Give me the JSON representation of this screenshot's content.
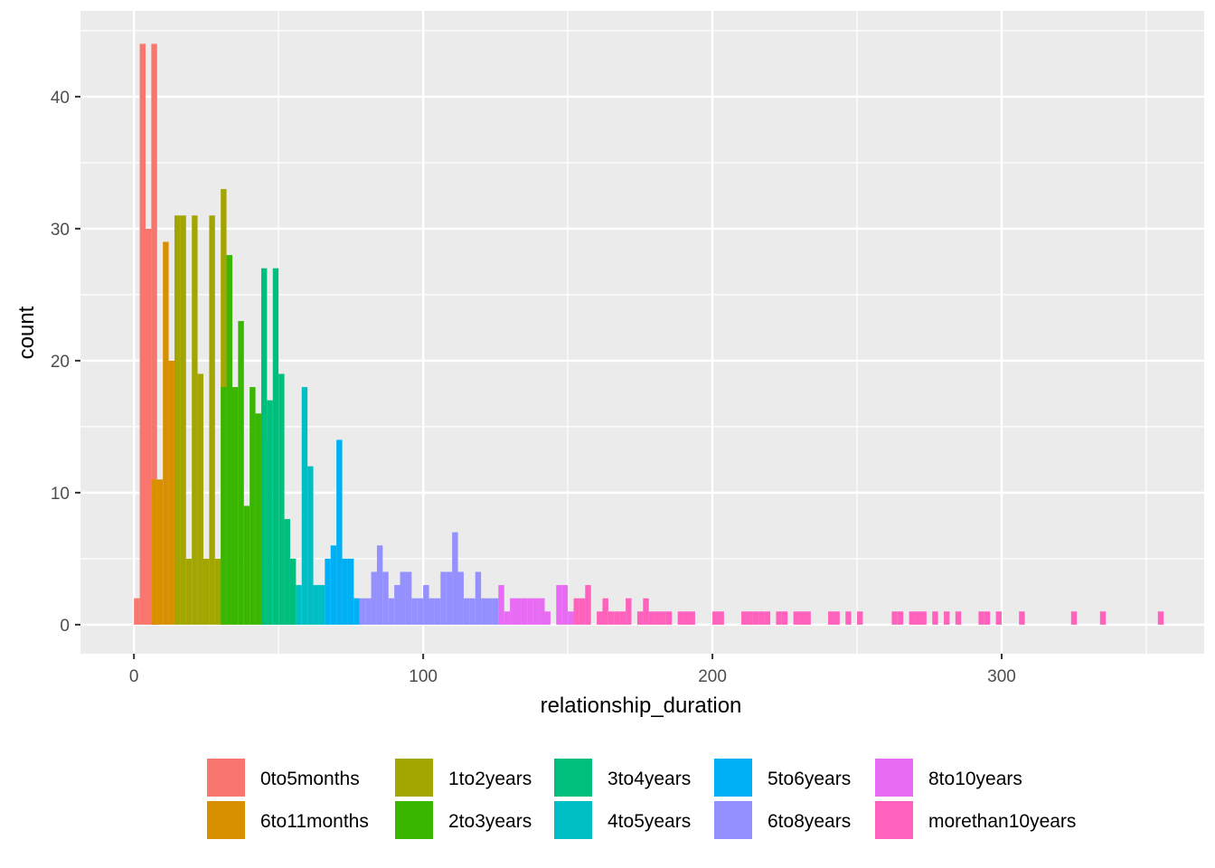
{
  "chart_data": {
    "type": "bar",
    "title": "",
    "xlabel": "relationship_duration",
    "ylabel": "count",
    "xlim": [
      -18.5,
      370
    ],
    "ylim": [
      -2.2,
      46.5
    ],
    "x_ticks": [
      0,
      100,
      200,
      300
    ],
    "y_ticks": [
      0,
      10,
      20,
      30,
      40
    ],
    "grid": true,
    "legend_position": "bottom",
    "bin_width": 2,
    "series": [
      {
        "name": "0to5months",
        "color": "#F8766D",
        "bins": [
          [
            0,
            2
          ],
          [
            2,
            44
          ],
          [
            4,
            30
          ],
          [
            6,
            44
          ]
        ]
      },
      {
        "name": "6to11months",
        "color": "#D89000",
        "bins": [
          [
            6,
            11
          ],
          [
            8,
            11
          ],
          [
            10,
            29
          ],
          [
            12,
            20
          ]
        ]
      },
      {
        "name": "1to2years",
        "color": "#A3A500",
        "bins": [
          [
            14,
            31
          ],
          [
            16,
            31
          ],
          [
            18,
            5
          ],
          [
            20,
            31
          ],
          [
            22,
            19
          ],
          [
            24,
            5
          ],
          [
            26,
            31
          ],
          [
            28,
            5
          ],
          [
            30,
            33
          ]
        ]
      },
      {
        "name": "2to3years",
        "color": "#39B600",
        "bins": [
          [
            30,
            18
          ],
          [
            32,
            28
          ],
          [
            34,
            18
          ],
          [
            36,
            23
          ],
          [
            38,
            9
          ],
          [
            40,
            18
          ],
          [
            42,
            16
          ],
          [
            44,
            14
          ]
        ]
      },
      {
        "name": "3to4years",
        "color": "#00BF7D",
        "bins": [
          [
            44,
            27
          ],
          [
            46,
            17
          ],
          [
            48,
            27
          ],
          [
            50,
            19
          ],
          [
            52,
            8
          ],
          [
            54,
            5
          ]
        ]
      },
      {
        "name": "4to5years",
        "color": "#00BFC4",
        "bins": [
          [
            56,
            3
          ],
          [
            58,
            18
          ],
          [
            60,
            12
          ],
          [
            62,
            3
          ],
          [
            64,
            3
          ]
        ]
      },
      {
        "name": "5to6years",
        "color": "#00B0F6",
        "bins": [
          [
            66,
            5
          ],
          [
            68,
            6
          ],
          [
            70,
            14
          ],
          [
            72,
            5
          ],
          [
            74,
            5
          ],
          [
            76,
            2
          ]
        ]
      },
      {
        "name": "6to8years",
        "color": "#9590FF",
        "bins": [
          [
            78,
            2
          ],
          [
            80,
            2
          ],
          [
            82,
            4
          ],
          [
            84,
            6
          ],
          [
            86,
            4
          ],
          [
            88,
            2
          ],
          [
            90,
            3
          ],
          [
            92,
            4
          ],
          [
            94,
            4
          ],
          [
            96,
            2
          ],
          [
            98,
            2
          ],
          [
            100,
            3
          ],
          [
            102,
            2
          ],
          [
            104,
            2
          ],
          [
            106,
            4
          ],
          [
            108,
            4
          ],
          [
            110,
            7
          ],
          [
            112,
            4
          ],
          [
            114,
            2
          ],
          [
            116,
            2
          ],
          [
            118,
            4
          ],
          [
            120,
            2
          ],
          [
            122,
            2
          ],
          [
            124,
            2
          ]
        ]
      },
      {
        "name": "8to10years",
        "color": "#E76BF3",
        "bins": [
          [
            126,
            3
          ],
          [
            128,
            1
          ],
          [
            130,
            2
          ],
          [
            132,
            2
          ],
          [
            134,
            2
          ],
          [
            136,
            2
          ],
          [
            138,
            2
          ],
          [
            140,
            2
          ],
          [
            142,
            1
          ],
          [
            146,
            3
          ],
          [
            148,
            3
          ],
          [
            150,
            1
          ]
        ]
      },
      {
        "name": "morethan10years",
        "color": "#FF62BC",
        "bins": [
          [
            152,
            2
          ],
          [
            154,
            2
          ],
          [
            156,
            3
          ],
          [
            160,
            1
          ],
          [
            162,
            2
          ],
          [
            164,
            1
          ],
          [
            166,
            1
          ],
          [
            168,
            1
          ],
          [
            170,
            2
          ],
          [
            174,
            1
          ],
          [
            176,
            2
          ],
          [
            178,
            1
          ],
          [
            180,
            1
          ],
          [
            182,
            1
          ],
          [
            184,
            1
          ],
          [
            188,
            1
          ],
          [
            190,
            1
          ],
          [
            192,
            1
          ],
          [
            200,
            1
          ],
          [
            202,
            1
          ],
          [
            210,
            1
          ],
          [
            212,
            1
          ],
          [
            214,
            1
          ],
          [
            216,
            1
          ],
          [
            218,
            1
          ],
          [
            222,
            1
          ],
          [
            224,
            1
          ],
          [
            228,
            1
          ],
          [
            230,
            1
          ],
          [
            232,
            1
          ],
          [
            240,
            1
          ],
          [
            242,
            1
          ],
          [
            246,
            1
          ],
          [
            250,
            1
          ],
          [
            262,
            1
          ],
          [
            264,
            1
          ],
          [
            268,
            1
          ],
          [
            270,
            1
          ],
          [
            272,
            1
          ],
          [
            276,
            1
          ],
          [
            280,
            1
          ],
          [
            284,
            1
          ],
          [
            292,
            1
          ],
          [
            294,
            1
          ],
          [
            298,
            1
          ],
          [
            306,
            1
          ],
          [
            324,
            1
          ],
          [
            334,
            1
          ],
          [
            354,
            1
          ]
        ]
      }
    ]
  },
  "legend": {
    "items": [
      {
        "label": "0to5months",
        "color": "#F8766D"
      },
      {
        "label": "6to11months",
        "color": "#D89000"
      },
      {
        "label": "1to2years",
        "color": "#A3A500"
      },
      {
        "label": "2to3years",
        "color": "#39B600"
      },
      {
        "label": "3to4years",
        "color": "#00BF7D"
      },
      {
        "label": "4to5years",
        "color": "#00BFC4"
      },
      {
        "label": "5to6years",
        "color": "#00B0F6"
      },
      {
        "label": "6to8years",
        "color": "#9590FF"
      },
      {
        "label": "8to10years",
        "color": "#E76BF3"
      },
      {
        "label": "morethan10years",
        "color": "#FF62BC"
      }
    ]
  }
}
